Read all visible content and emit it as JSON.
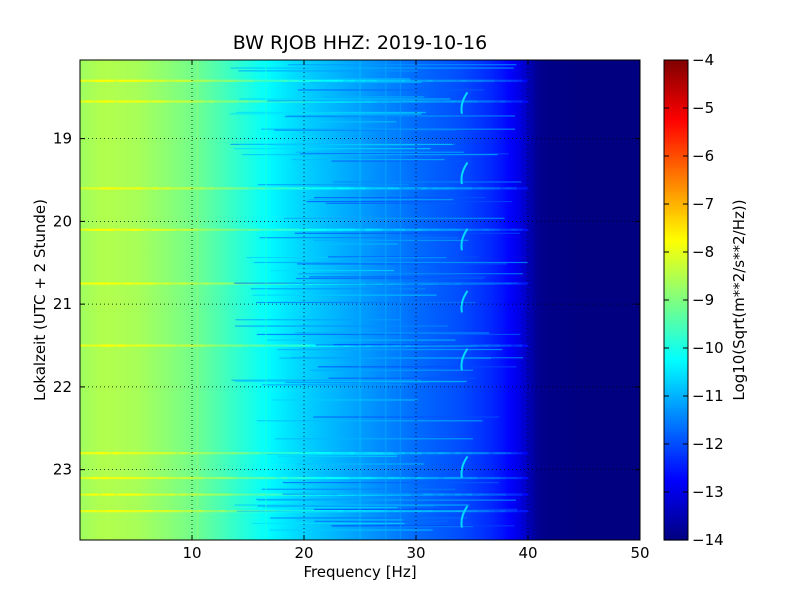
{
  "chart_data": {
    "type": "heatmap",
    "title": "BW RJOB HHZ: 2019-10-16",
    "xlabel": "Frequency [Hz]",
    "ylabel": "Lokalzeit (UTC + 2 Stunde)",
    "xlim": [
      0,
      50
    ],
    "ylim": [
      18.05,
      23.85
    ],
    "y_inverted": true,
    "x_ticks": [
      10,
      20,
      30,
      40,
      50
    ],
    "x_tick_labels": [
      "10",
      "20",
      "30",
      "40",
      "50"
    ],
    "y_ticks": [
      19,
      20,
      21,
      22,
      23
    ],
    "y_tick_labels": [
      "19",
      "20",
      "21",
      "22",
      "23"
    ],
    "grid": true,
    "colormap": "jet",
    "colorbar": {
      "label": "Log10(Sqrt(m**2/s**2/Hz))",
      "range": [
        -14,
        -4
      ],
      "ticks": [
        -4,
        -5,
        -6,
        -7,
        -8,
        -9,
        -10,
        -11,
        -12,
        -13,
        -14
      ],
      "tick_labels": [
        "−4",
        "−5",
        "−6",
        "−7",
        "−8",
        "−9",
        "−10",
        "−11",
        "−12",
        "−13",
        "−14"
      ]
    },
    "spectrum_profile": {
      "frequency": [
        0,
        2,
        5,
        10,
        13,
        17,
        20,
        25,
        30,
        34,
        37,
        39,
        40,
        41,
        45,
        50
      ],
      "log_amplitude": [
        -8.7,
        -8.5,
        -8.6,
        -9.1,
        -9.6,
        -10.3,
        -10.7,
        -11.2,
        -11.7,
        -12.0,
        -12.4,
        -12.9,
        -13.4,
        -13.9,
        -14.0,
        -14.0
      ]
    },
    "features": {
      "tonal_line_hz": 34.3,
      "tonal_bursts_hours": [
        18.6,
        19.45,
        20.25,
        21.0,
        21.7,
        23.0,
        23.6
      ],
      "horizontal_band_hours": [
        18.3,
        18.55,
        19.6,
        20.1,
        20.75,
        21.5,
        22.8,
        23.1,
        23.3,
        23.5
      ]
    }
  }
}
